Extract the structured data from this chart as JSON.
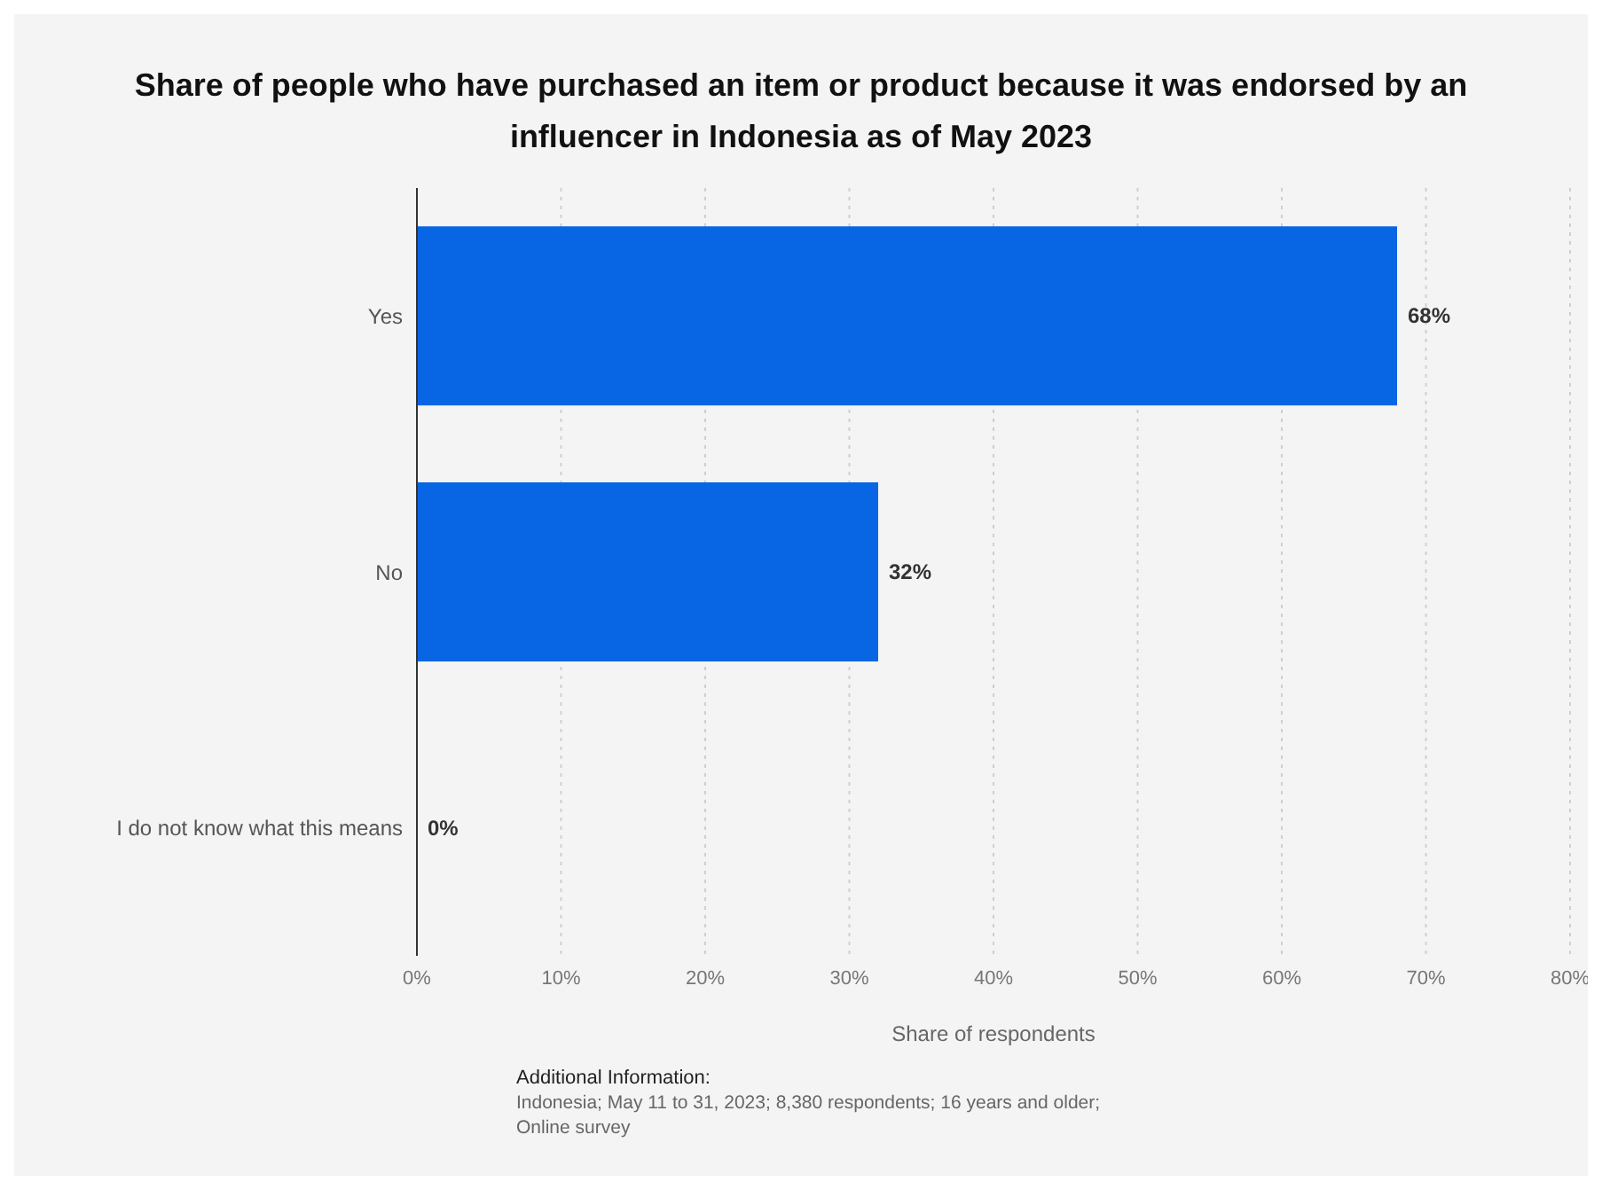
{
  "chart_data": {
    "type": "bar",
    "orientation": "horizontal",
    "title": "Share of people who have purchased an item or product because it was endorsed by an influencer in Indonesia as of May 2023",
    "xlabel": "Share of respondents",
    "categories": [
      "Yes",
      "No",
      "I do not know what this means"
    ],
    "values": [
      68,
      32,
      0
    ],
    "color": "#0866e4",
    "value_labels": [
      "68%",
      "32%",
      "0%"
    ],
    "xlim": [
      0,
      80
    ],
    "xticks": [
      {
        "value": 0,
        "label": "0%"
      },
      {
        "value": 10,
        "label": "10%"
      },
      {
        "value": 20,
        "label": "20%"
      },
      {
        "value": 30,
        "label": "30%"
      },
      {
        "value": 40,
        "label": "40%"
      },
      {
        "value": 50,
        "label": "50%"
      },
      {
        "value": 60,
        "label": "60%"
      },
      {
        "value": 70,
        "label": "70%"
      },
      {
        "value": 80,
        "label": "80%"
      }
    ],
    "grid": "x",
    "legend": false,
    "annotations": [
      "Additional Information:",
      "Indonesia; May 11 to 31, 2023; 8,380 respondents; 16 years and older;",
      "Online survey"
    ]
  }
}
